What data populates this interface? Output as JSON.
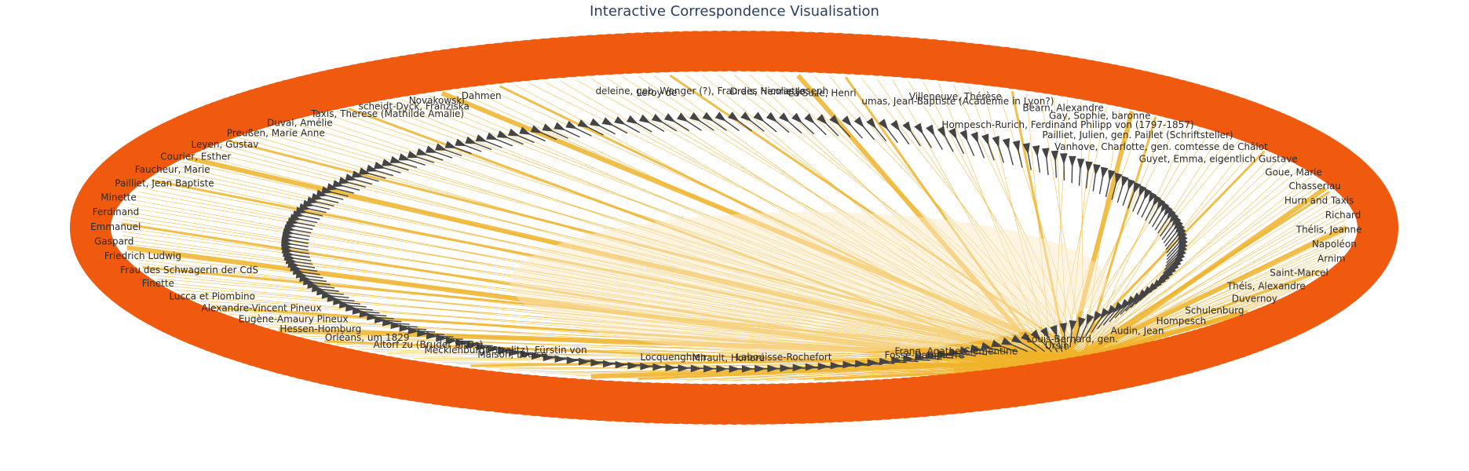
{
  "title": "Interactive Correspondence Visualisation",
  "colors": {
    "node": "#f05a0f",
    "edge": "#f0b32a",
    "arrow": "#444444",
    "title": "#2a3f5f"
  },
  "node_labels": [
    "Pailliet, Jean Baptiste",
    "Faucheur, Marie",
    "Courier, Esther",
    "Leyen, Gustav",
    "Preußen, Marie Anne",
    "Duval, Amélie",
    "Taxis, Therese (Mathilde Amalie)",
    "scheidt-Dyck, Franziska",
    "Novakowski",
    "Dahmen",
    "Leroy de",
    "deleine, geb. Wenger (?), Frau des Nicolas Joseph",
    "Drais, Henriette",
    "La Suze, Henri",
    "Villeneuve, Thérèse",
    "umas, Jean-Baptiste (Académie in Lyon?)",
    "Béarn, Alexandre",
    "Gay, Sophie, baronne",
    "Hompesch-Rurich, Ferdinand Philipp von (1797-1857)",
    "Pailliet, Julien, gen. Paillet (Schriftsteller)",
    "Vanhove, Charlotte, gen. comtesse de Châlot",
    "Guyet, Emma, eigentlich Gustave",
    "Goue, Marie",
    "Chasseriau",
    "Hurn and Taxis",
    "Richard",
    "Thélis, Jeanne",
    "Napoléon",
    "Arnim",
    "Saint-Marcel",
    "Théis, Alexandre",
    "Duvernoy",
    "Schulenburg",
    "Hompesch",
    "Audin, Jean",
    "Louis-Bernard, gen.",
    "Ursin",
    "Franq, Agathe Clémentine",
    "Fosse-Dampierre",
    "Labouisse-Rochefort",
    "Mirault, Honoré",
    "Locquenghien",
    "Maison, Louise",
    "Mecklenburg(-Strelitz), Fürstin von",
    "Altorf zu (Bruder SRDs)",
    "Orléans, um 1829",
    "Hessen-Homburg",
    "Eugène-Amaury Pineux",
    "Alexandre-Vincent Pineux",
    "Lucca et Piombino",
    "Finette",
    "Frau des Schwagerin der CdS",
    "Friedrich Ludwig",
    "Gaspard",
    "Emmanuel",
    "Ferdinand",
    "Minette"
  ]
}
